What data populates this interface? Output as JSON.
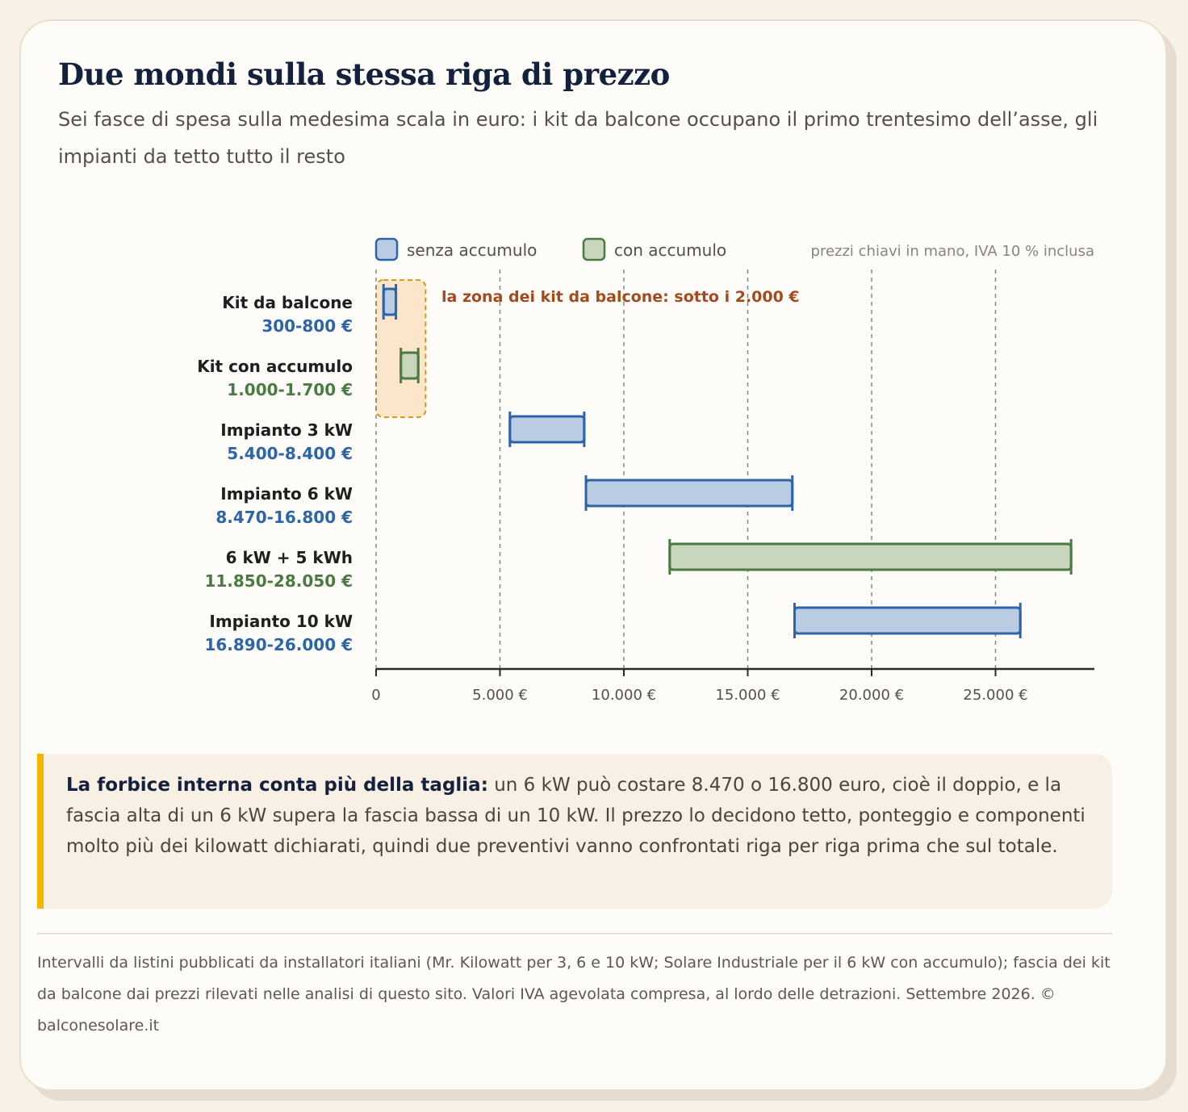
{
  "header": {
    "title": "Due mondi sulla stessa riga di prezzo",
    "subtitle": "Sei fasce di spesa sulla medesima scala in euro: i kit da balcone occupano il primo trentesimo dell’asse, gli impianti da tetto tutto il resto"
  },
  "colors": {
    "blue_stroke": "#2e64a8",
    "blue_fill": "#b9cce2",
    "green_stroke": "#4b7a43",
    "green_fill": "#c7d6bd",
    "zone_fill": "#fbe6cc",
    "zone_stroke": "#d89a1e",
    "zone_label": "#a34a1f",
    "accent_bar": "#f7b500"
  },
  "chart_data": {
    "type": "range-bar",
    "xlim": [
      0,
      29000
    ],
    "x_ticks": [
      0,
      5000,
      10000,
      15000,
      20000,
      25000
    ],
    "x_tick_labels": [
      "0",
      "5.000 €",
      "10.000 €",
      "15.000 €",
      "20.000 €",
      "25.000 €"
    ],
    "grid": "vertical dashed",
    "legend": [
      {
        "label": "senza accumulo",
        "key": "senza"
      },
      {
        "label": "con accumulo",
        "key": "con"
      }
    ],
    "legend_placement": "top",
    "note": "prezzi chiavi in mano, IVA 10 % inclusa",
    "annotation": {
      "text": "la zona dei kit da balcone: sotto i 2.000 €",
      "range": [
        0,
        2000
      ]
    },
    "rows": [
      {
        "name": "Kit da balcone",
        "range_label": "300-800 €",
        "min": 300,
        "max": 800,
        "series": "senza"
      },
      {
        "name": "Kit con accumulo",
        "range_label": "1.000-1.700 €",
        "min": 1000,
        "max": 1700,
        "series": "con"
      },
      {
        "name": "Impianto 3 kW",
        "range_label": "5.400-8.400 €",
        "min": 5400,
        "max": 8400,
        "series": "senza"
      },
      {
        "name": "Impianto 6 kW",
        "range_label": "8.470-16.800 €",
        "min": 8470,
        "max": 16800,
        "series": "senza"
      },
      {
        "name": "6 kW + 5 kWh",
        "range_label": "11.850-28.050 €",
        "min": 11850,
        "max": 28050,
        "series": "con"
      },
      {
        "name": "Impianto 10 kW",
        "range_label": "16.890-26.000 €",
        "min": 16890,
        "max": 26000,
        "series": "senza"
      }
    ]
  },
  "callout": {
    "lead": "La forbice interna conta più della taglia:",
    "body": " un 6 kW può costare 8.470 o 16.800 euro, cioè il doppio, e la fascia alta di un 6 kW supera la fascia bassa di un 10 kW. Il prezzo lo decidono tetto, ponteggio e componenti molto più dei kilowatt dichiarati, quindi due preventivi vanno confrontati riga per riga prima che sul totale."
  },
  "source": {
    "text": "Intervalli da listini pubblicati da installatori italiani (Mr. Kilowatt per 3, 6 e 10 kW; Solare Industriale per il 6 kW con accumulo); fascia dei kit da balcone dai prezzi rilevati nelle analisi di questo sito. Valori IVA agevolata compresa, al lordo delle detrazioni. Settembre 2026. © balconesolare.it"
  }
}
